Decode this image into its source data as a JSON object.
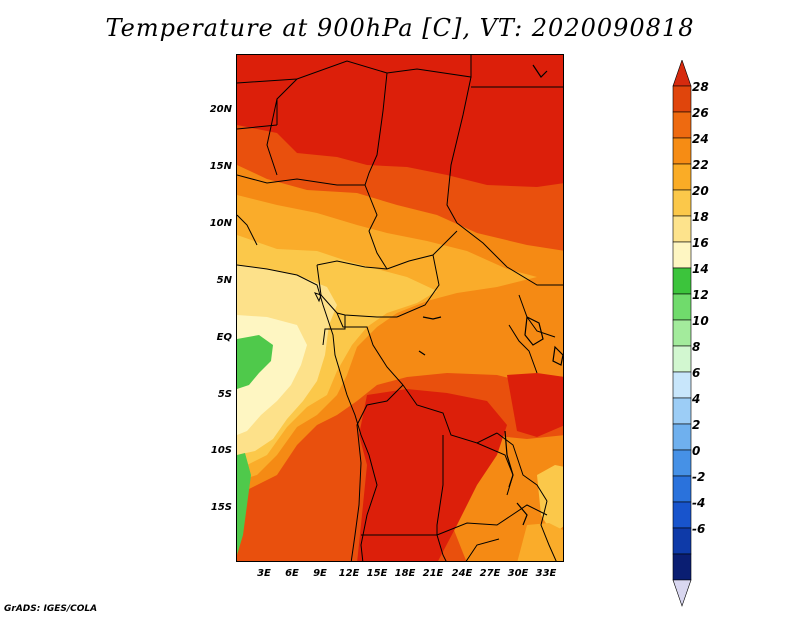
{
  "title": "Temperature at 900hPa [C], VT: 2020090818",
  "footer": "GrADS: IGES/COLA",
  "axes": {
    "lat_labels": [
      "20N",
      "15N",
      "10N",
      "5N",
      "EQ",
      "5S",
      "10S",
      "15S"
    ],
    "lon_labels": [
      "3E",
      "6E",
      "9E",
      "12E",
      "15E",
      "18E",
      "21E",
      "24E",
      "27E",
      "30E",
      "33E"
    ]
  },
  "colorbar": {
    "labels": [
      "28",
      "26",
      "24",
      "22",
      "20",
      "18",
      "16",
      "14",
      "12",
      "10",
      "8",
      "6",
      "4",
      "2",
      "0",
      "-2",
      "-4",
      "-6"
    ],
    "colors": [
      "#d62a0e",
      "#e0450c",
      "#ee6a10",
      "#f68c14",
      "#faac26",
      "#fbc84a",
      "#fde38c",
      "#fef6c2",
      "#3cc43c",
      "#70db6c",
      "#a3eb9c",
      "#d2f7d0",
      "#c8e6fb",
      "#9ccdf6",
      "#6fb0ee",
      "#4691e6",
      "#2a72dc",
      "#1854cc",
      "#0e3aa8",
      "#0a1e72",
      "#d9d7f0"
    ]
  },
  "colors": {
    "hot": "#dc1f0a",
    "warm": "#e9500d",
    "mid": "#f58a14",
    "mild": "#faac2a",
    "cool": "#fde18a",
    "green": "#4fc94b",
    "outline": "#000000"
  }
}
